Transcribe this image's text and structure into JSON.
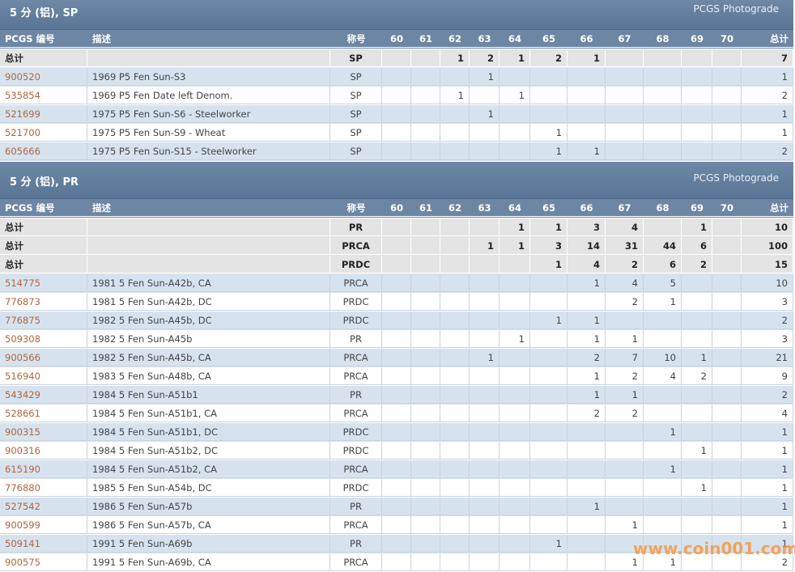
{
  "columns": [
    "PCGS 编号",
    "描述",
    "称号",
    "60",
    "61",
    "62",
    "63",
    "64",
    "65",
    "66",
    "67",
    "68",
    "69",
    "70",
    "总计"
  ],
  "sections": [
    {
      "title": "5 分 (铝), SP",
      "photograde": "PCGS Photograde",
      "rows": [
        {
          "id": "总计",
          "desc": null,
          "grade": "SP",
          "counts": [
            null,
            null,
            1,
            2,
            1,
            2,
            1,
            null,
            null,
            null,
            null
          ],
          "total": 7
        },
        {
          "id": "900520",
          "desc": "1969 P5 Fen Sun-S3",
          "grade": "SP",
          "counts": [
            null,
            null,
            null,
            1,
            null,
            null,
            null,
            null,
            null,
            null,
            null
          ],
          "total": 1
        },
        {
          "id": "535854",
          "desc": "1969 P5 Fen Date left Denom.",
          "grade": "SP",
          "counts": [
            null,
            null,
            1,
            null,
            1,
            null,
            null,
            null,
            null,
            null,
            null
          ],
          "total": 2
        },
        {
          "id": "521699",
          "desc": "1975 P5 Fen Sun-S6 - Steelworker",
          "grade": "SP",
          "counts": [
            null,
            null,
            null,
            1,
            null,
            null,
            null,
            null,
            null,
            null,
            null
          ],
          "total": 1
        },
        {
          "id": "521700",
          "desc": "1975 P5 Fen Sun-S9 - Wheat",
          "grade": "SP",
          "counts": [
            null,
            null,
            null,
            null,
            null,
            1,
            null,
            null,
            null,
            null,
            null
          ],
          "total": 1
        },
        {
          "id": "605666",
          "desc": "1975 P5 Fen Sun-S15 - Steelworker",
          "grade": "SP",
          "counts": [
            null,
            null,
            null,
            null,
            null,
            1,
            1,
            null,
            null,
            null,
            null
          ],
          "total": 2
        }
      ]
    },
    {
      "title": "5 分 (铝), PR",
      "photograde": "PCGS Photograde",
      "rows": [
        {
          "id": "总计",
          "desc": null,
          "grade": "PR",
          "counts": [
            null,
            null,
            null,
            null,
            1,
            1,
            3,
            4,
            null,
            1,
            null
          ],
          "total": 10
        },
        {
          "id": "总计",
          "desc": null,
          "grade": "PRCA",
          "counts": [
            null,
            null,
            null,
            1,
            1,
            3,
            14,
            31,
            44,
            6,
            null
          ],
          "total": 100
        },
        {
          "id": "总计",
          "desc": null,
          "grade": "PRDC",
          "counts": [
            null,
            null,
            null,
            null,
            null,
            1,
            4,
            2,
            6,
            2,
            null
          ],
          "total": 15
        },
        {
          "id": "514775",
          "desc": "1981 5 Fen Sun-A42b, CA",
          "grade": "PRCA",
          "counts": [
            null,
            null,
            null,
            null,
            null,
            null,
            1,
            4,
            5,
            null,
            null
          ],
          "total": 10
        },
        {
          "id": "776873",
          "desc": "1981 5 Fen Sun-A42b, DC",
          "grade": "PRDC",
          "counts": [
            null,
            null,
            null,
            null,
            null,
            null,
            null,
            2,
            1,
            null,
            null
          ],
          "total": 3
        },
        {
          "id": "776875",
          "desc": "1982 5 Fen Sun-A45b, DC",
          "grade": "PRDC",
          "counts": [
            null,
            null,
            null,
            null,
            null,
            1,
            1,
            null,
            null,
            null,
            null
          ],
          "total": 2
        },
        {
          "id": "509308",
          "desc": "1982 5 Fen Sun-A45b",
          "grade": "PR",
          "counts": [
            null,
            null,
            null,
            null,
            1,
            null,
            1,
            1,
            null,
            null,
            null
          ],
          "total": 3
        },
        {
          "id": "900566",
          "desc": "1982 5 Fen Sun-A45b, CA",
          "grade": "PRCA",
          "counts": [
            null,
            null,
            null,
            1,
            null,
            null,
            2,
            7,
            10,
            1,
            null
          ],
          "total": 21
        },
        {
          "id": "516940",
          "desc": "1983 5 Fen Sun-A48b, CA",
          "grade": "PRCA",
          "counts": [
            null,
            null,
            null,
            null,
            null,
            null,
            1,
            2,
            4,
            2,
            null
          ],
          "total": 9
        },
        {
          "id": "543429",
          "desc": "1984 5 Fen Sun-A51b1",
          "grade": "PR",
          "counts": [
            null,
            null,
            null,
            null,
            null,
            null,
            1,
            1,
            null,
            null,
            null
          ],
          "total": 2
        },
        {
          "id": "528661",
          "desc": "1984 5 Fen Sun-A51b1, CA",
          "grade": "PRCA",
          "counts": [
            null,
            null,
            null,
            null,
            null,
            null,
            2,
            2,
            null,
            null,
            null
          ],
          "total": 4
        },
        {
          "id": "900315",
          "desc": "1984 5 Fen Sun-A51b1, DC",
          "grade": "PRDC",
          "counts": [
            null,
            null,
            null,
            null,
            null,
            null,
            null,
            null,
            1,
            null,
            null
          ],
          "total": 1
        },
        {
          "id": "900316",
          "desc": "1984 5 Fen Sun-A51b2, DC",
          "grade": "PRDC",
          "counts": [
            null,
            null,
            null,
            null,
            null,
            null,
            null,
            null,
            null,
            1,
            null
          ],
          "total": 1
        },
        {
          "id": "615190",
          "desc": "1984 5 Fen Sun-A51b2, CA",
          "grade": "PRCA",
          "counts": [
            null,
            null,
            null,
            null,
            null,
            null,
            null,
            null,
            1,
            null,
            null
          ],
          "total": 1
        },
        {
          "id": "776880",
          "desc": "1985 5 Fen Sun-A54b, DC",
          "grade": "PRDC",
          "counts": [
            null,
            null,
            null,
            null,
            null,
            null,
            null,
            null,
            null,
            1,
            null
          ],
          "total": 1
        },
        {
          "id": "527542",
          "desc": "1986 5 Fen Sun-A57b",
          "grade": "PR",
          "counts": [
            null,
            null,
            null,
            null,
            null,
            null,
            1,
            null,
            null,
            null,
            null
          ],
          "total": 1
        },
        {
          "id": "900599",
          "desc": "1986 5 Fen Sun-A57b, CA",
          "grade": "PRCA",
          "counts": [
            null,
            null,
            null,
            null,
            null,
            null,
            null,
            1,
            null,
            null,
            null
          ],
          "total": 1
        },
        {
          "id": "509141",
          "desc": "1991 5 Fen Sun-A69b",
          "grade": "PR",
          "counts": [
            null,
            null,
            null,
            null,
            null,
            1,
            null,
            null,
            null,
            null,
            null
          ],
          "total": 1
        },
        {
          "id": "900575",
          "desc": "1991 5 Fen Sun-A69b, CA",
          "grade": "PRCA",
          "counts": [
            null,
            null,
            null,
            null,
            null,
            null,
            null,
            1,
            1,
            null,
            null
          ],
          "total": 2
        }
      ]
    }
  ],
  "watermark": "www.coin001.com"
}
